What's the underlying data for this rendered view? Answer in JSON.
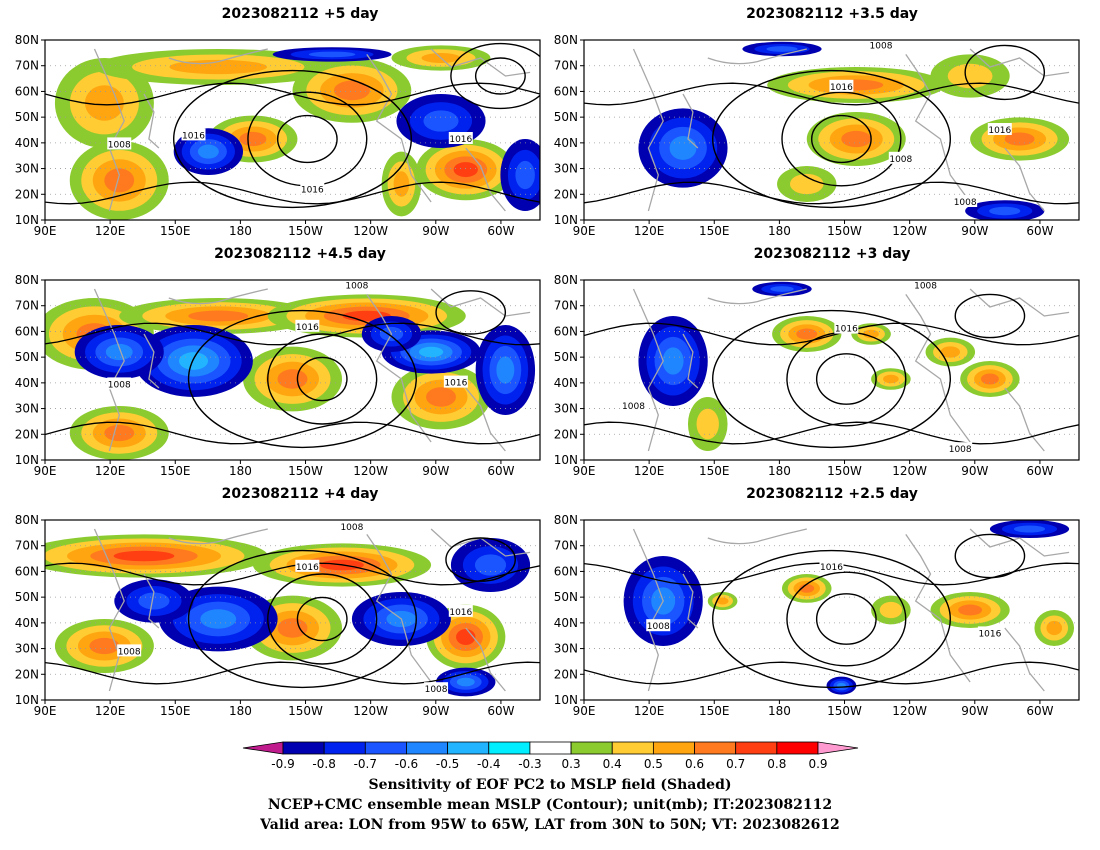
{
  "panels": [
    {
      "title": "2023082112  +5 day"
    },
    {
      "title": "2023082112  +3.5 day"
    },
    {
      "title": "2023082112  +4.5 day"
    },
    {
      "title": "2023082112  +3 day"
    },
    {
      "title": "2023082112  +4 day"
    },
    {
      "title": "2023082112  +2.5 day"
    }
  ],
  "axes": {
    "lat_labels": [
      "80N",
      "70N",
      "60N",
      "50N",
      "40N",
      "30N",
      "20N",
      "10N"
    ],
    "lon_labels": [
      "90E",
      "120E",
      "150E",
      "180",
      "150W",
      "120W",
      "90W",
      "60W"
    ]
  },
  "contour_labels": [
    "1008",
    "1016"
  ],
  "colorbar": {
    "ticks": [
      "-0.9",
      "-0.8",
      "-0.7",
      "-0.6",
      "-0.5",
      "-0.4",
      "-0.3",
      "0.3",
      "0.4",
      "0.5",
      "0.6",
      "0.7",
      "0.8",
      "0.9"
    ],
    "colors": [
      "#0000b0",
      "#0022ee",
      "#1a55ff",
      "#1f86ff",
      "#22b4ff",
      "#00eeff",
      "#ffffff",
      "#8ccb2f",
      "#ffcc33",
      "#ffa510",
      "#ff7a1e",
      "#ff3f12",
      "#ff0000"
    ],
    "low_end_color": "#c01c8e",
    "high_end_color": "#ff9ad0"
  },
  "captions": {
    "line1": "Sensitivity of EOF PC2 to MSLP field (Shaded)",
    "line2": "NCEP+CMC ensemble mean MSLP (Contour); unit(mb); IT:2023082112",
    "line3": "Valid area: LON from 95W to 65W, LAT from 30N to 50N; VT: 2023082612"
  }
}
